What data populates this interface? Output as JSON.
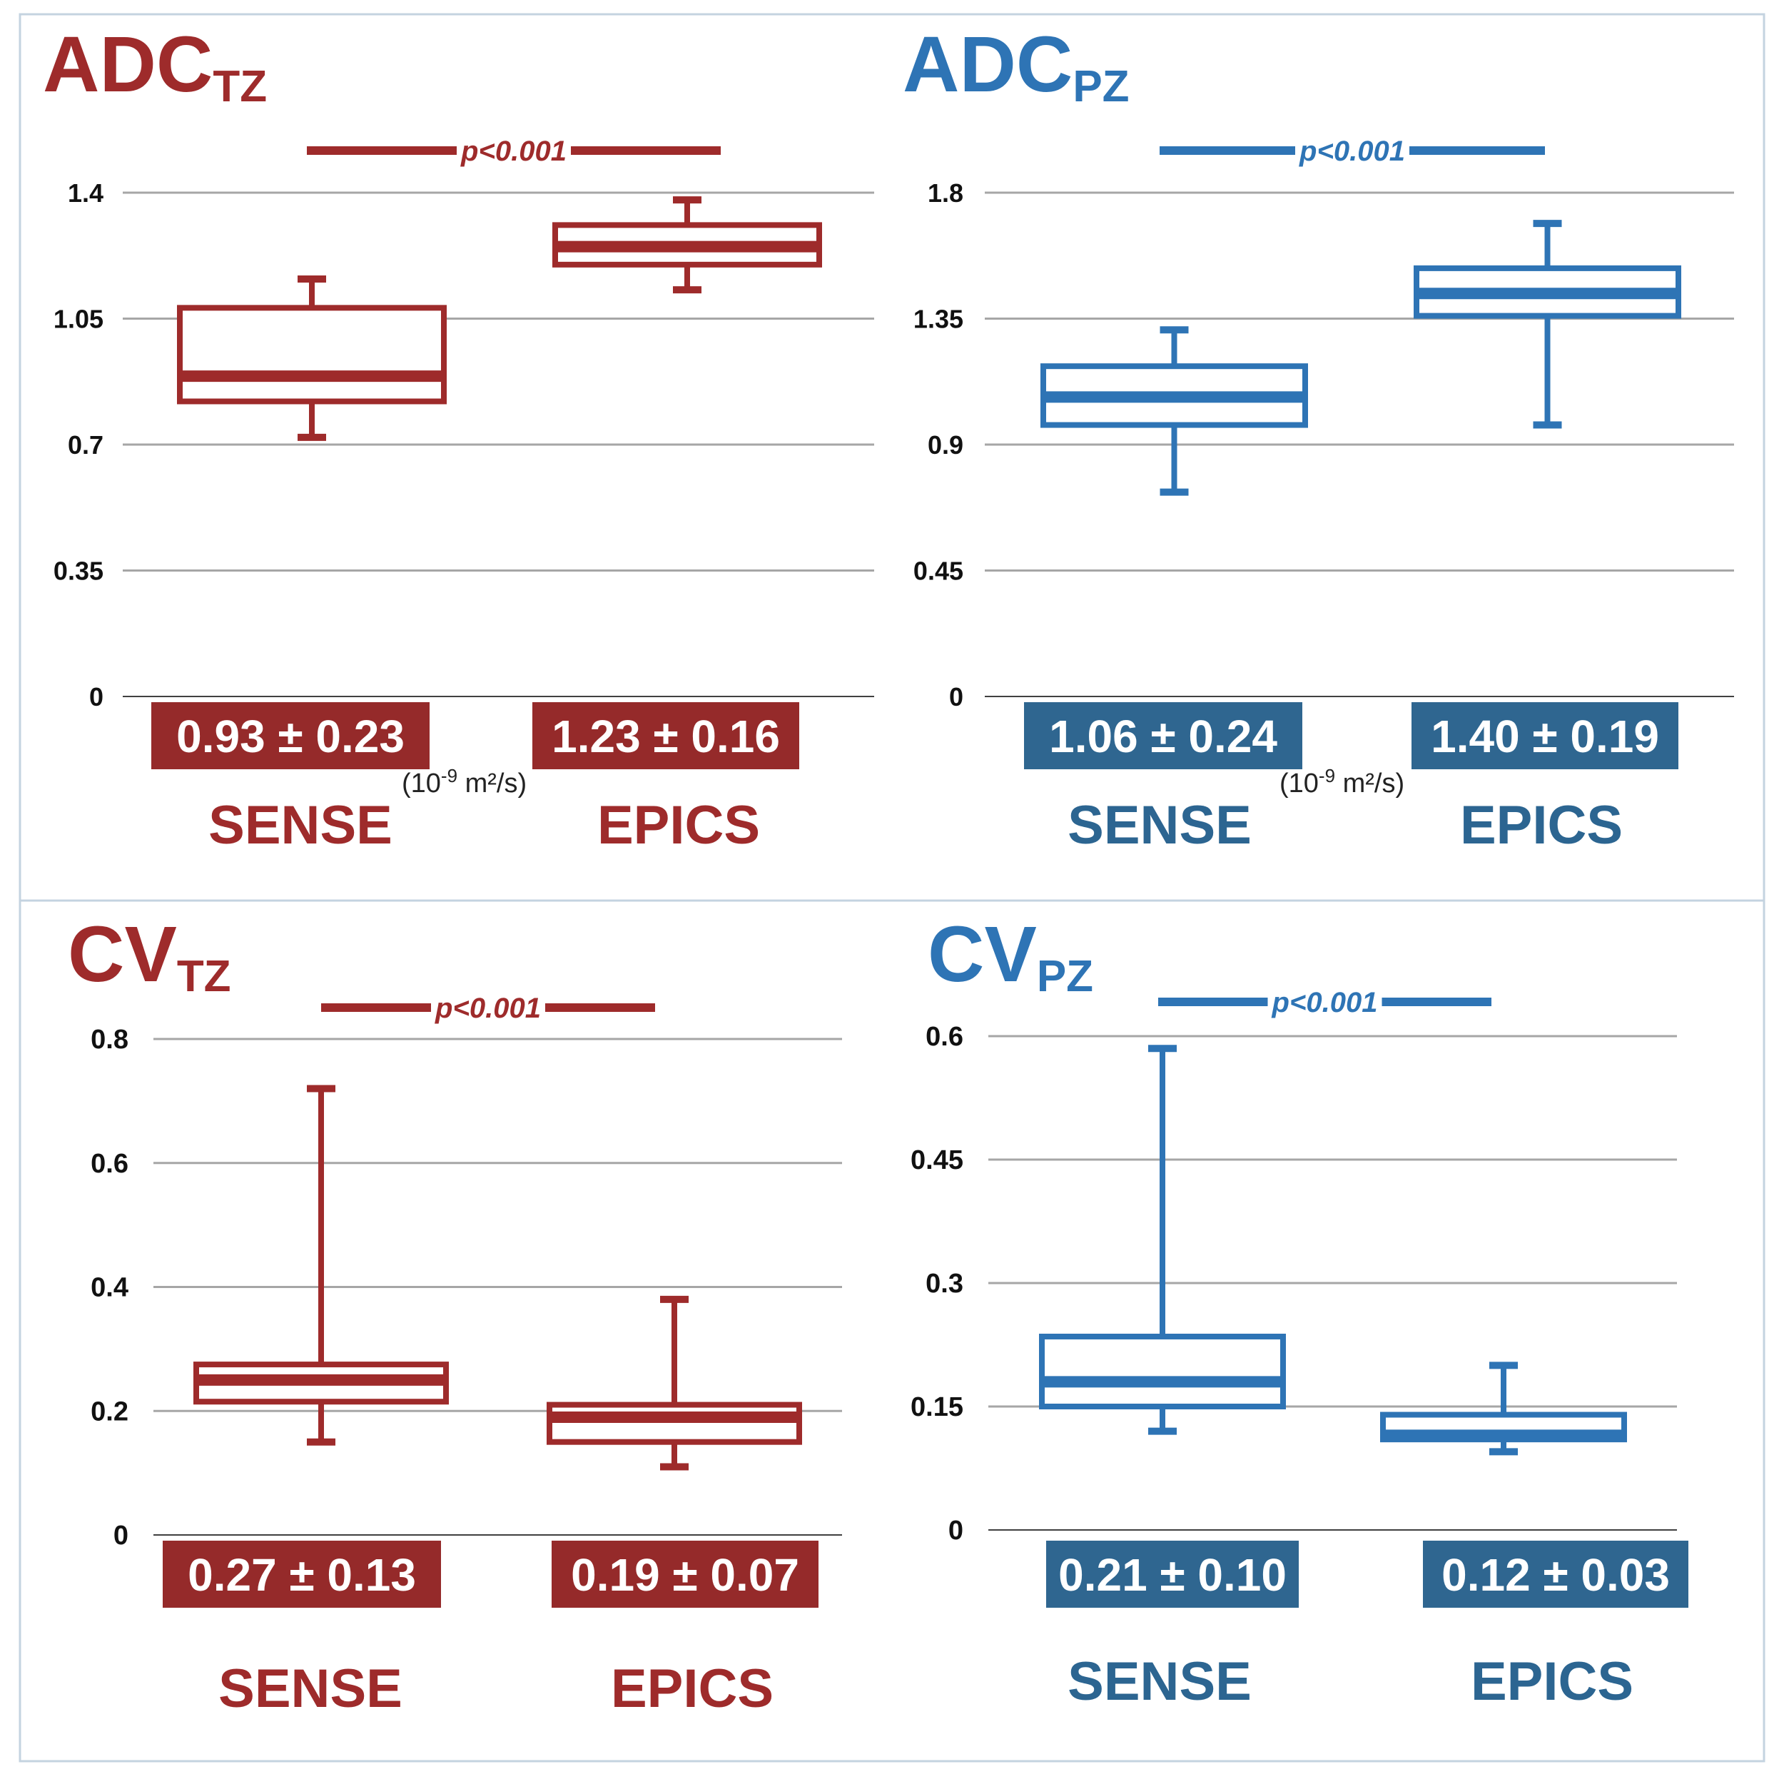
{
  "colors": {
    "red": "#9e2b2b",
    "blue": "#2e74b5",
    "label_blue": "#2c6591",
    "stat_red": "#952a2a",
    "stat_blue": "#2f6690",
    "grid": "#a6a6a6",
    "frame": "#c4d3e0"
  },
  "chart_data": [
    {
      "type": "box",
      "id": "adc-tz",
      "color": "red",
      "title": "ADC",
      "title_sub": "TZ",
      "significance": "p<0.001",
      "ylim": [
        0,
        1.4
      ],
      "yticks": [
        0,
        0.35,
        0.7,
        1.05,
        1.4
      ],
      "ytick_labels": [
        "0",
        "0.35",
        "0.7",
        "1.05",
        "1.4"
      ],
      "unit_base": "(10",
      "unit_exp": "-9",
      "unit_tail": " m²/s)",
      "categories": [
        "SENSE",
        "EPICS"
      ],
      "boxes": [
        {
          "name": "SENSE",
          "whisker_low": 0.72,
          "q1": 0.82,
          "median": 0.89,
          "q3": 1.08,
          "whisker_high": 1.16,
          "stat": "0.93 ± 0.23"
        },
        {
          "name": "EPICS",
          "whisker_low": 1.13,
          "q1": 1.2,
          "median": 1.25,
          "q3": 1.31,
          "whisker_high": 1.38,
          "stat": "1.23 ± 0.16"
        }
      ]
    },
    {
      "type": "box",
      "id": "adc-pz",
      "color": "blue",
      "title": "ADC",
      "title_sub": "PZ",
      "significance": "p<0.001",
      "ylim": [
        0,
        1.8
      ],
      "yticks": [
        0,
        0.45,
        0.9,
        1.35,
        1.8
      ],
      "ytick_labels": [
        "0",
        "0.45",
        "0.9",
        "1.35",
        "1.8"
      ],
      "unit_base": "(10",
      "unit_exp": "-9",
      "unit_tail": " m²/s)",
      "categories": [
        "SENSE",
        "EPICS"
      ],
      "boxes": [
        {
          "name": "SENSE",
          "whisker_low": 0.73,
          "q1": 0.97,
          "median": 1.07,
          "q3": 1.18,
          "whisker_high": 1.31,
          "stat": "1.06 ± 0.24"
        },
        {
          "name": "EPICS",
          "whisker_low": 0.97,
          "q1": 1.36,
          "median": 1.44,
          "q3": 1.53,
          "whisker_high": 1.69,
          "stat": "1.40 ± 0.19"
        }
      ]
    },
    {
      "type": "box",
      "id": "cv-tz",
      "color": "red",
      "title": "CV",
      "title_sub": "TZ",
      "significance": "p<0.001",
      "ylim": [
        0,
        0.8
      ],
      "yticks": [
        0,
        0.2,
        0.4,
        0.6,
        0.8
      ],
      "ytick_labels": [
        "0",
        "0.2",
        "0.4",
        "0.6",
        "0.8"
      ],
      "categories": [
        "SENSE",
        "EPICS"
      ],
      "boxes": [
        {
          "name": "SENSE",
          "whisker_low": 0.15,
          "q1": 0.215,
          "median": 0.25,
          "q3": 0.275,
          "whisker_high": 0.72,
          "stat": "0.27 ± 0.13"
        },
        {
          "name": "EPICS",
          "whisker_low": 0.11,
          "q1": 0.15,
          "median": 0.19,
          "q3": 0.21,
          "whisker_high": 0.38,
          "stat": "0.19 ± 0.07"
        }
      ]
    },
    {
      "type": "box",
      "id": "cv-pz",
      "color": "blue",
      "title": "CV",
      "title_sub": "PZ",
      "significance": "p<0.001",
      "ylim": [
        0,
        0.6
      ],
      "yticks": [
        0,
        0.15,
        0.3,
        0.45,
        0.6
      ],
      "ytick_labels": [
        "0",
        "0.15",
        "0.3",
        "0.45",
        "0.6"
      ],
      "categories": [
        "SENSE",
        "EPICS"
      ],
      "boxes": [
        {
          "name": "SENSE",
          "whisker_low": 0.12,
          "q1": 0.15,
          "median": 0.18,
          "q3": 0.235,
          "whisker_high": 0.585,
          "stat": "0.21 ± 0.10"
        },
        {
          "name": "EPICS",
          "whisker_low": 0.095,
          "q1": 0.11,
          "median": 0.115,
          "q3": 0.14,
          "whisker_high": 0.2,
          "stat": "0.12 ± 0.03"
        }
      ]
    }
  ]
}
